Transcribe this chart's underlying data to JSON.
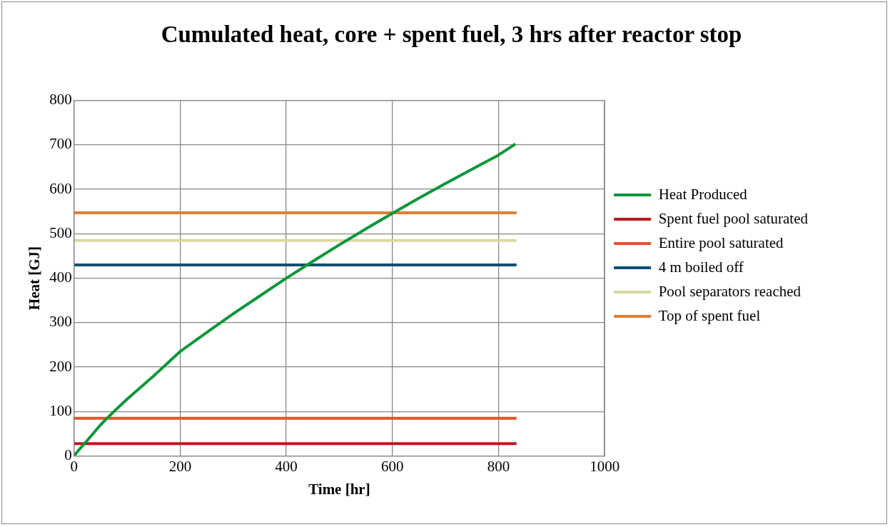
{
  "chart_data": {
    "type": "line",
    "title": "Cumulated heat, core + spent fuel, 3 hrs after reactor stop",
    "xlabel": "Time [hr]",
    "ylabel": "Heat [GJ]",
    "xlim": [
      0,
      1000
    ],
    "xticks": [
      0,
      200,
      400,
      600,
      800,
      1000
    ],
    "ylim": [
      0,
      800
    ],
    "yticks": [
      0,
      100,
      200,
      300,
      400,
      500,
      600,
      700,
      800
    ],
    "grid": true,
    "legend": "right",
    "marker": "none",
    "line_style": "solid",
    "series": [
      {
        "name": "Heat Produced",
        "color": "#0b9639",
        "x": [
          0,
          10,
          25,
          50,
          75,
          100,
          150,
          200,
          250,
          300,
          350,
          400,
          450,
          500,
          550,
          600,
          650,
          700,
          750,
          800,
          832
        ],
        "values": [
          0,
          15,
          35,
          70,
          100,
          128,
          180,
          235,
          278,
          320,
          360,
          400,
          438,
          475,
          511,
          546,
          580,
          613,
          645,
          677,
          702
        ]
      },
      {
        "name": "Spent fuel pool saturated",
        "color": "#c0171f",
        "x": [
          0,
          834
        ],
        "values": [
          28,
          28
        ]
      },
      {
        "name": "Entire pool saturated",
        "color": "#d9572b",
        "x": [
          0,
          834
        ],
        "values": [
          85,
          85
        ]
      },
      {
        "name": "4 m boiled off",
        "color": "#0b4f73",
        "x": [
          0,
          834
        ],
        "values": [
          430,
          430
        ]
      },
      {
        "name": "Pool separators reached",
        "color": "#dcd9a0",
        "x": [
          0,
          834
        ],
        "values": [
          485,
          485
        ]
      },
      {
        "name": "Top of spent fuel",
        "color": "#e07f35",
        "x": [
          0,
          834
        ],
        "values": [
          547,
          547
        ]
      }
    ]
  }
}
